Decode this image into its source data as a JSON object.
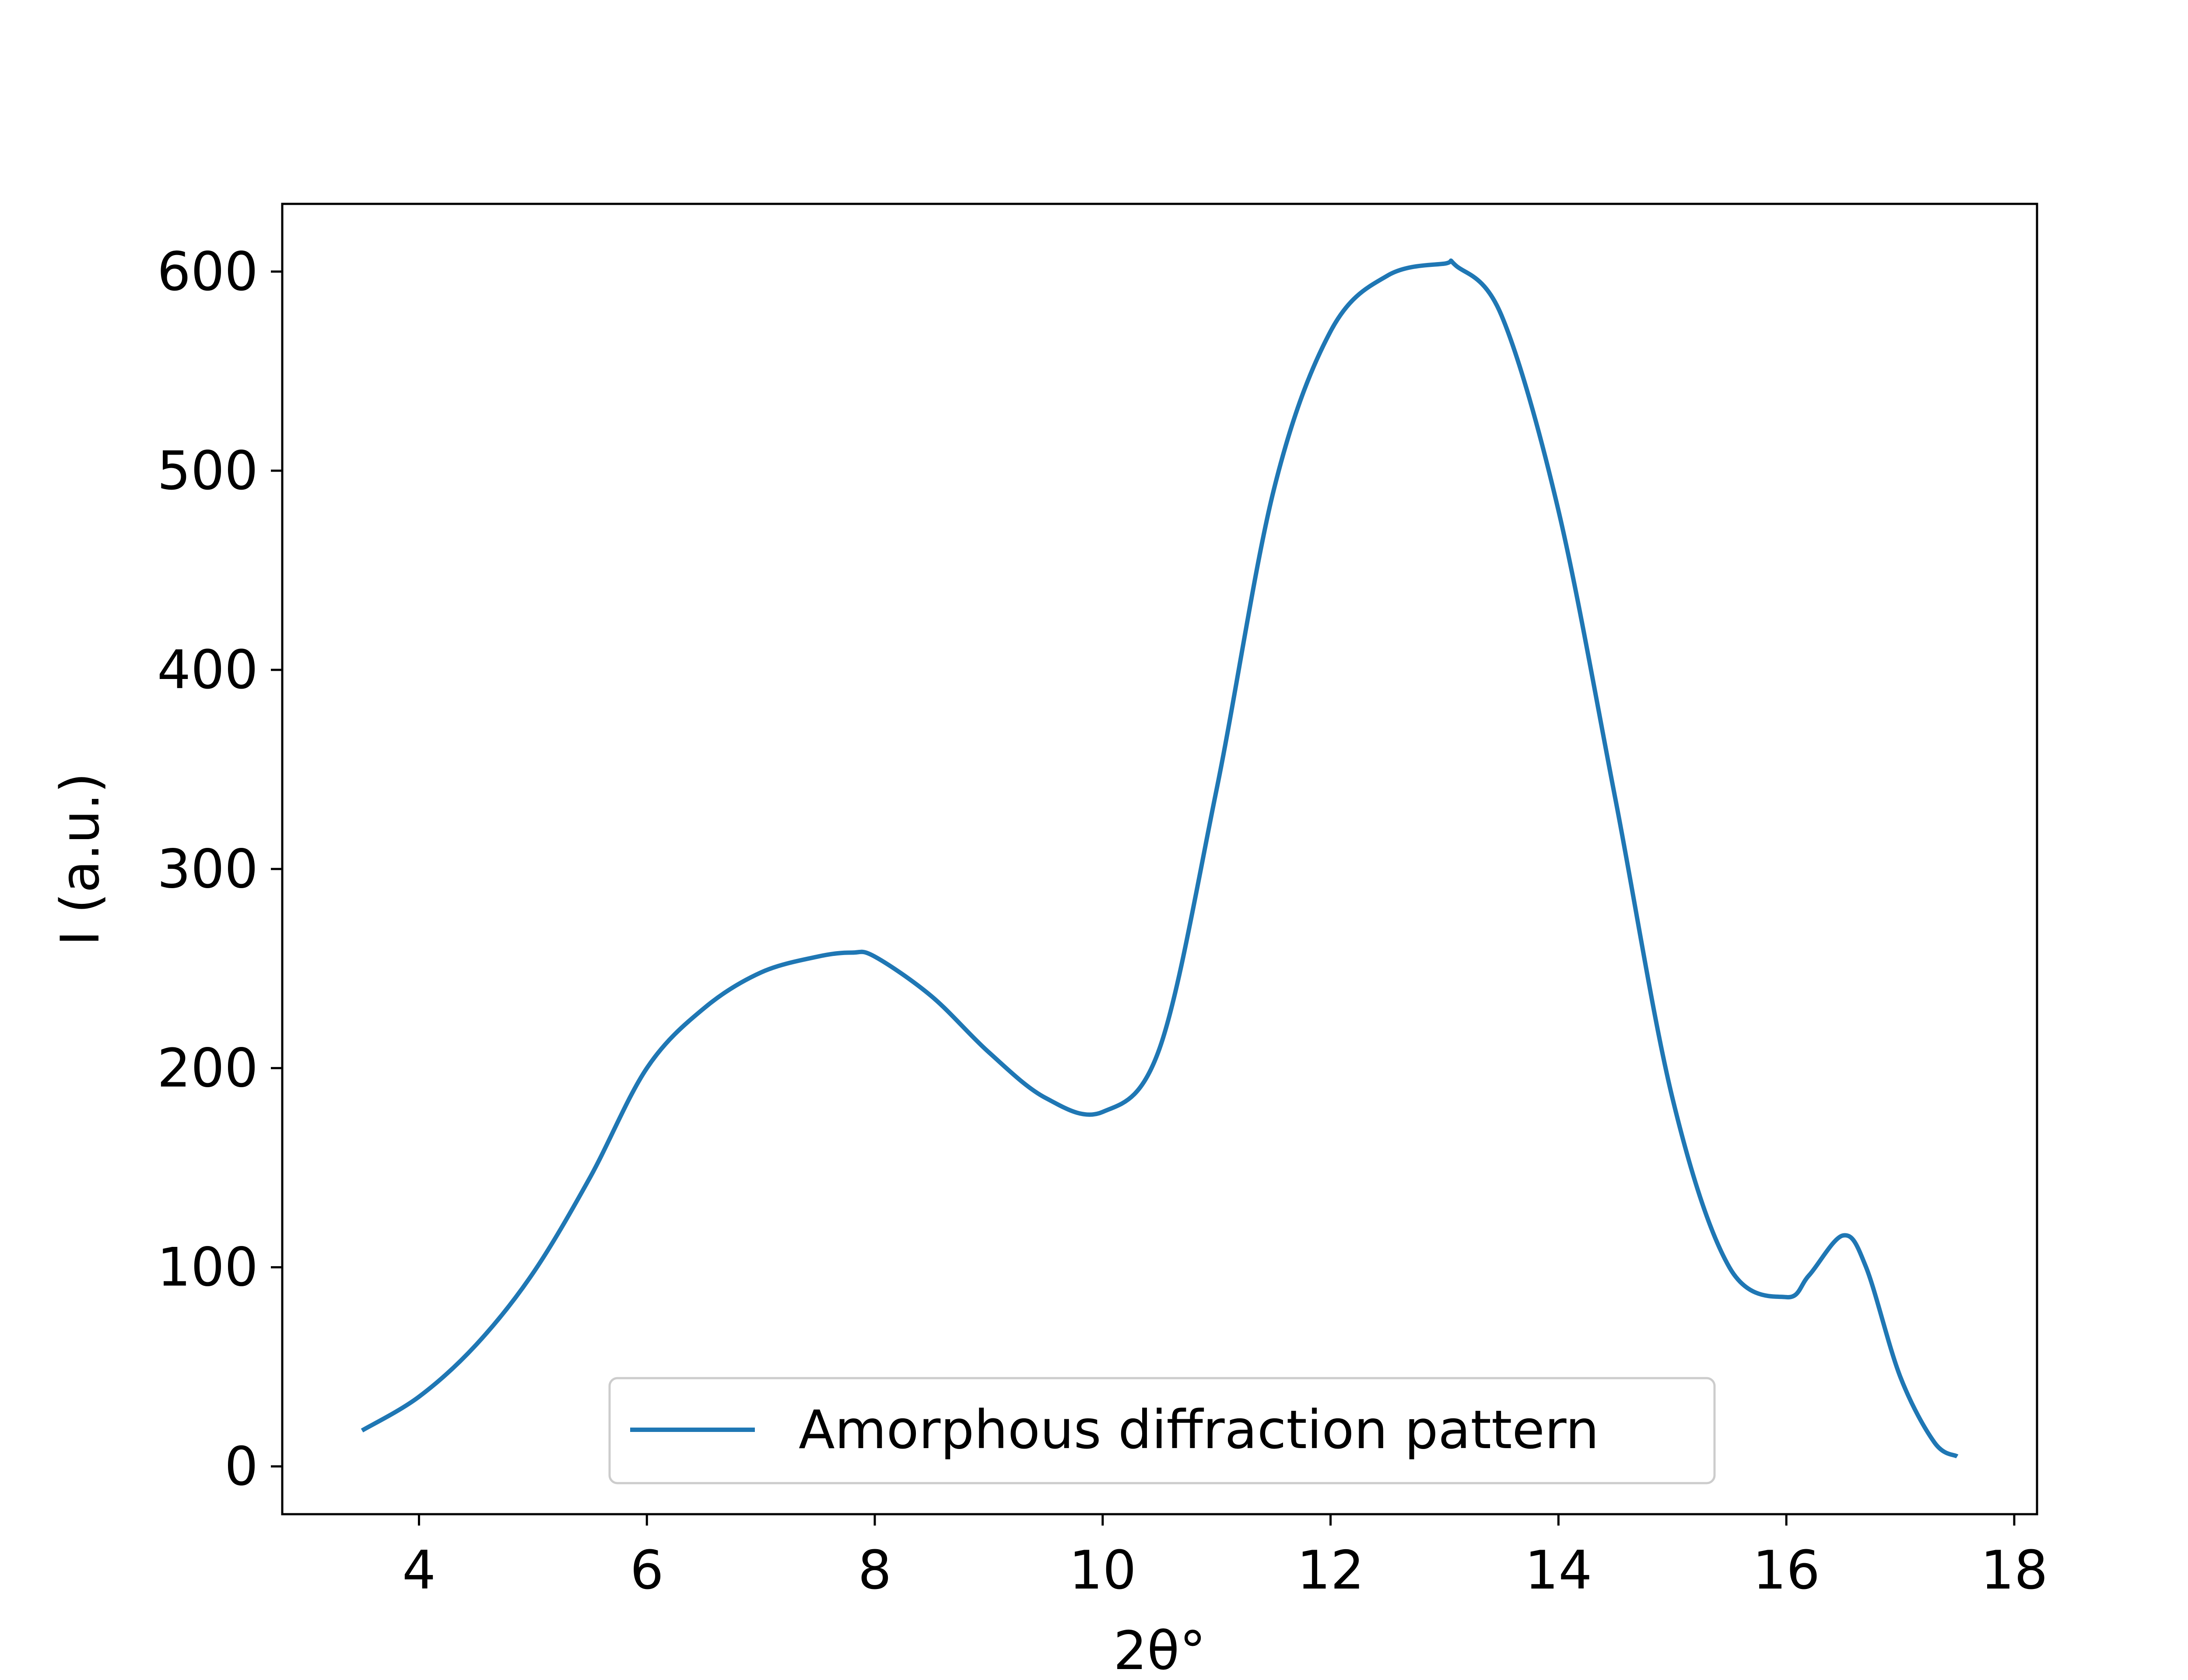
{
  "chart_data": {
    "type": "line",
    "title": "",
    "xlabel": "2θ°",
    "ylabel": "I (a.u.)",
    "xlim": [
      2.8,
      18.2
    ],
    "ylim": [
      -24,
      634
    ],
    "xticks": [
      4,
      6,
      8,
      10,
      12,
      14,
      16,
      18
    ],
    "yticks": [
      0,
      100,
      200,
      300,
      400,
      500,
      600
    ],
    "grid": false,
    "legend": {
      "placement": "lower center"
    },
    "series": [
      {
        "name": "Amorphous diffraction pattern",
        "color": "#1f77b4",
        "x": [
          3.5,
          4.0,
          4.5,
          5.0,
          5.5,
          6.0,
          6.5,
          7.0,
          7.5,
          7.8,
          8.0,
          8.5,
          9.0,
          9.5,
          10.0,
          10.5,
          11.0,
          11.5,
          12.0,
          12.5,
          13.0,
          13.1,
          13.5,
          14.0,
          14.5,
          15.0,
          15.5,
          16.0,
          16.2,
          16.5,
          16.7,
          17.0,
          17.3,
          17.5
        ],
        "y": [
          18,
          35,
          61,
          97,
          145,
          200,
          230,
          248,
          256,
          258,
          256,
          236,
          208,
          185,
          178,
          210,
          340,
          490,
          570,
          598,
          604,
          603,
          578,
          480,
          335,
          185,
          100,
          85,
          96,
          116,
          100,
          45,
          12,
          5
        ]
      }
    ]
  }
}
